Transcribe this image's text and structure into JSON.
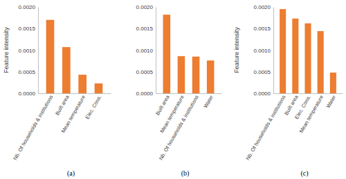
{
  "chart_data": [
    {
      "type": "bar",
      "title": "(a)",
      "y_label": "Feature intensity",
      "categories": [
        "Nb. Of households & institutions",
        "Built area",
        "Mean temperature",
        "Elec. Cons."
      ],
      "values": [
        0.0017,
        0.00107,
        0.00043,
        0.00023
      ],
      "color": "#ed7d31",
      "ylim": [
        0,
        0.002
      ],
      "yticks": [
        {
          "value": 0,
          "label": "0.0000"
        },
        {
          "value": 0.0005,
          "label": "0.0005"
        },
        {
          "value": 0.001,
          "label": "0.0010"
        },
        {
          "value": 0.0015,
          "label": "0.0015"
        },
        {
          "value": 0.002,
          "label": "0.0020"
        }
      ],
      "grid": false
    },
    {
      "type": "bar",
      "title": "(b)",
      "categories": [
        "Built area",
        "Mean temperature",
        "Nb. Of households & institutions",
        "Water"
      ],
      "values": [
        0.00182,
        0.00086,
        0.00085,
        0.00076
      ],
      "color": "#ed7d31",
      "ylim": [
        0,
        0.002
      ],
      "yticks": [
        {
          "value": 0,
          "label": "0.0000"
        },
        {
          "value": 0.0005,
          "label": "0.0005"
        },
        {
          "value": 0.001,
          "label": "0.0010"
        },
        {
          "value": 0.0015,
          "label": "0.0015"
        },
        {
          "value": 0.002,
          "label": "0.0020"
        }
      ],
      "grid": false
    },
    {
      "type": "bar",
      "title": "(c)",
      "y_label": "Feature intensity",
      "categories": [
        "Nb. Of households & institutions",
        "Built area",
        "Elec. Cons.",
        "Mean temperature",
        "Water"
      ],
      "values": [
        0.00195,
        0.00173,
        0.00162,
        0.00144,
        0.00048
      ],
      "color": "#ed7d31",
      "ylim": [
        0,
        0.002
      ],
      "yticks": [
        {
          "value": 0,
          "label": "0.0000"
        },
        {
          "value": 0.0005,
          "label": "0.0005"
        },
        {
          "value": 0.001,
          "label": "0.0010"
        },
        {
          "value": 0.0015,
          "label": "0.0015"
        },
        {
          "value": 0.002,
          "label": "0.0020"
        }
      ],
      "grid": false
    }
  ]
}
